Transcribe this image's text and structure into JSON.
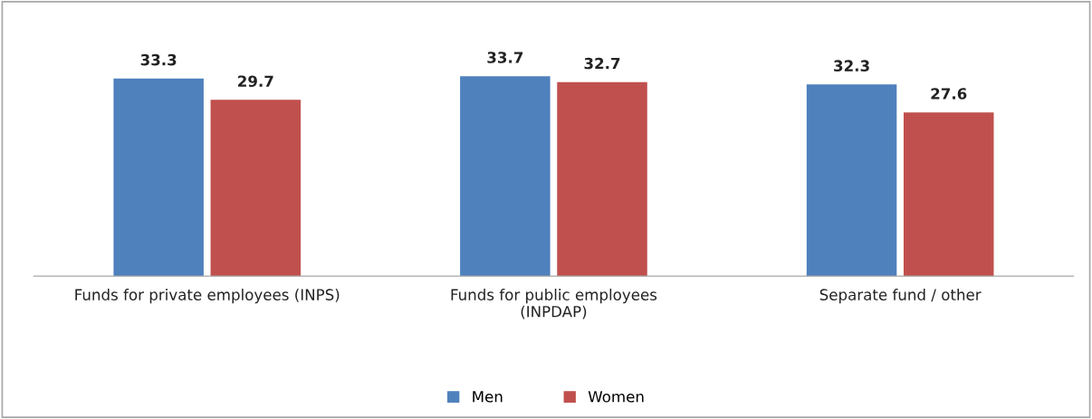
{
  "chart_data": {
    "type": "bar",
    "categories": [
      "Funds for private employees (INPS)",
      "Funds for public employees\n(INPDAP)",
      "Separate fund / other"
    ],
    "series": [
      {
        "name": "Men",
        "color": "#4f81bd",
        "values": [
          33.3,
          33.7,
          32.3
        ]
      },
      {
        "name": "Women",
        "color": "#c0504d",
        "values": [
          29.7,
          32.7,
          27.6
        ]
      }
    ],
    "data_labels": true,
    "legend": "bottom"
  }
}
